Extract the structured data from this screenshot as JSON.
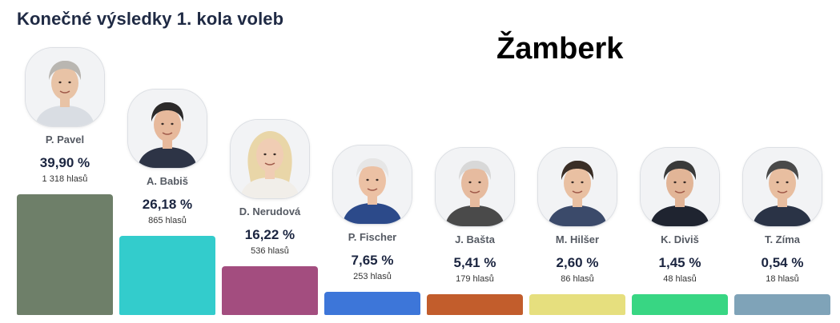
{
  "header": {
    "title": "Konečné výsledky 1. kola voleb",
    "place": "Žamberk"
  },
  "chart_data": {
    "type": "bar",
    "title": "Konečné výsledky 1. kola voleb",
    "subtitle": "Žamberk",
    "categories": [
      "P. Pavel",
      "A. Babiš",
      "D. Nerudová",
      "P. Fischer",
      "J. Bašta",
      "M. Hilšer",
      "K. Diviš",
      "T. Zíma"
    ],
    "values": [
      39.9,
      26.18,
      16.22,
      7.65,
      5.41,
      2.6,
      1.45,
      0.54
    ],
    "value_labels": [
      "39,90 %",
      "26,18 %",
      "16,22 %",
      "7,65 %",
      "5,41 %",
      "2,60 %",
      "1,45 %",
      "0,54 %"
    ],
    "votes": [
      "1 318 hlasů",
      "865 hlasů",
      "536 hlasů",
      "253 hlasů",
      "179 hlasů",
      "86 hlasů",
      "48 hlasů",
      "18 hlasů"
    ],
    "colors": [
      "#6e7f69",
      "#33cccc",
      "#a34d7f",
      "#3d76d9",
      "#c25d2c",
      "#e6df7e",
      "#38d683",
      "#7fa3b8"
    ],
    "icons": [
      "candidate-photo-pavel",
      "candidate-photo-babis",
      "candidate-photo-nerudova",
      "candidate-photo-fischer",
      "candidate-photo-basta",
      "candidate-photo-hilser",
      "candidate-photo-divis",
      "candidate-photo-zima"
    ],
    "xlabel": "",
    "ylabel": "",
    "grid": false,
    "legend": "none"
  }
}
